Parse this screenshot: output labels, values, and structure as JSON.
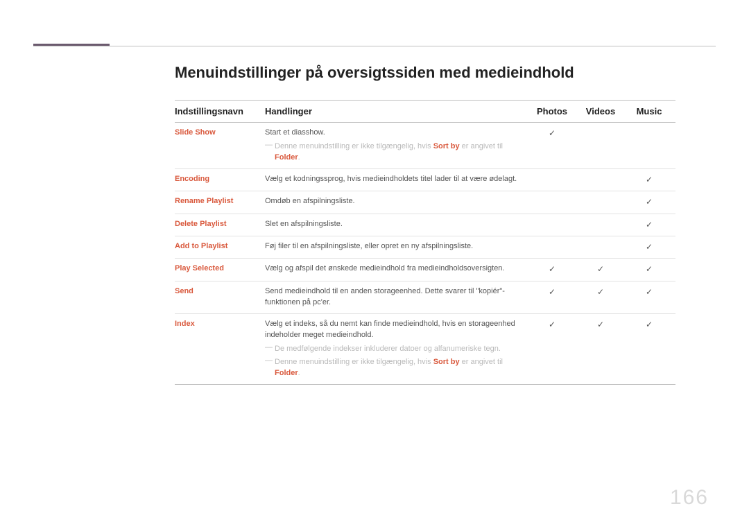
{
  "colors": {
    "accent": "#d9593d",
    "accent_bar": "#6b5a6e",
    "text": "#3a3a3a",
    "muted": "#b9b9b9",
    "rule": "#bfbfbf",
    "row_rule": "#e2e2e2",
    "page_num": "#d9d9d9",
    "bg": "#ffffff"
  },
  "page_number": "166",
  "title": "Menuindstillinger på oversigtssiden med medieindhold",
  "columns": {
    "name": "Indstillingsnavn",
    "actions": "Handlinger",
    "photos": "Photos",
    "videos": "Videos",
    "music": "Music"
  },
  "check_glyph": "✓",
  "rows": [
    {
      "name": "Slide Show",
      "desc": "Start et diasshow.",
      "notes": [
        {
          "pre": "Denne menuindstilling er ikke tilgængelig, hvis ",
          "hl1": "Sort by",
          "mid": " er angivet til ",
          "hl2": "Folder",
          "post": "."
        }
      ],
      "photos": true,
      "videos": false,
      "music": false
    },
    {
      "name": "Encoding",
      "desc": "Vælg et kodningssprog, hvis medieindholdets titel lader til at være ødelagt.",
      "notes": [],
      "photos": false,
      "videos": false,
      "music": true
    },
    {
      "name": "Rename Playlist",
      "desc": "Omdøb en afspilningsliste.",
      "notes": [],
      "photos": false,
      "videos": false,
      "music": true
    },
    {
      "name": "Delete Playlist",
      "desc": "Slet en afspilningsliste.",
      "notes": [],
      "photos": false,
      "videos": false,
      "music": true
    },
    {
      "name": "Add to Playlist",
      "desc": "Føj filer til en afspilningsliste, eller opret en ny afspilningsliste.",
      "notes": [],
      "photos": false,
      "videos": false,
      "music": true
    },
    {
      "name": "Play Selected",
      "desc": "Vælg og afspil det ønskede medieindhold fra medieindholdsoversigten.",
      "notes": [],
      "photos": true,
      "videos": true,
      "music": true
    },
    {
      "name": "Send",
      "desc": "Send medieindhold til en anden storageenhed. Dette svarer til \"kopiér\"-funktionen på pc'er.",
      "notes": [],
      "photos": true,
      "videos": true,
      "music": true
    },
    {
      "name": "Index",
      "desc": "Vælg et indeks, så du nemt kan finde medieindhold, hvis en storageenhed indeholder meget medieindhold.",
      "notes": [
        {
          "pre": "De medfølgende indekser inkluderer datoer og alfanumeriske tegn."
        },
        {
          "pre": "Denne menuindstilling er ikke tilgængelig, hvis ",
          "hl1": "Sort by",
          "mid": " er angivet til ",
          "hl2": "Folder",
          "post": "."
        }
      ],
      "photos": true,
      "videos": true,
      "music": true
    }
  ]
}
